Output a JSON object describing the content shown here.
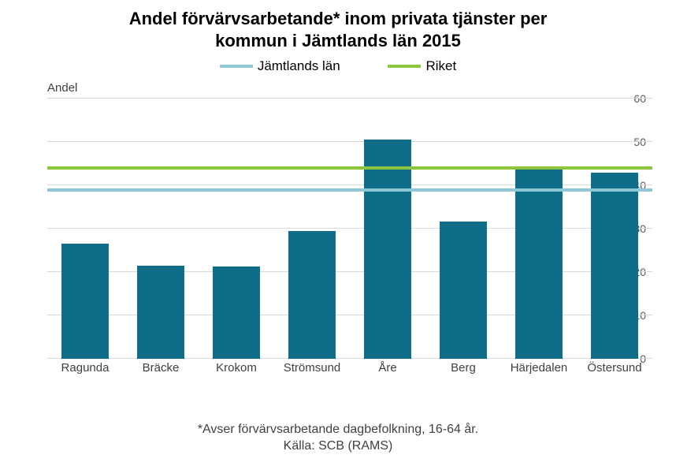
{
  "chart": {
    "type": "bar",
    "title_line1": "Andel förvärvsarbetande* inom privata tjänster per",
    "title_line2": "kommun i Jämtlands län 2015",
    "title_fontsize": 22,
    "title_color": "#000000",
    "y_axis_title": "Andel",
    "categories": [
      "Ragunda",
      "Bräcke",
      "Krokom",
      "Strömsund",
      "Åre",
      "Berg",
      "Härjedalen",
      "Östersund"
    ],
    "values": [
      26.5,
      21.5,
      21.2,
      29.4,
      50.5,
      31.6,
      43.8,
      43.0
    ],
    "bar_color": "#0e6e87",
    "ylim_min": 0,
    "ylim_max": 60,
    "ytick_step": 10,
    "grid_color": "#d9d9d9",
    "background_color": "#ffffff",
    "axis_label_fontsize": 14,
    "axis_label_color": "#595959",
    "category_label_fontsize": 15,
    "ref_lines": [
      {
        "label": "Jämtlands län",
        "value": 39.0,
        "color": "#8fc7d4",
        "width": 4
      },
      {
        "label": "Riket",
        "value": 44.0,
        "color": "#8cc63f",
        "width": 4
      }
    ],
    "legend_fontsize": 17
  },
  "footnote": {
    "line1": "*Avser förvärvsarbetande dagbefolkning, 16-64 år.",
    "line2": "Källa: SCB (RAMS)",
    "fontsize": 16
  }
}
